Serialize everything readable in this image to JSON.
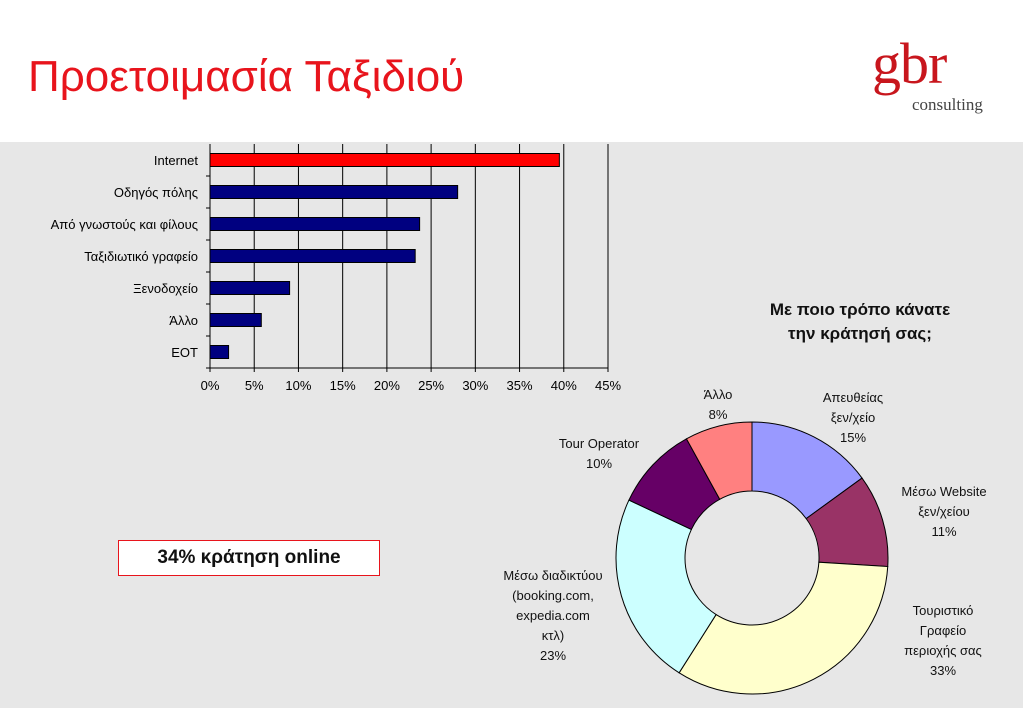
{
  "header": {
    "title": "Προετοιμασία Ταξιδιού",
    "logo_text": "gbr",
    "logo_subtext": "consulting"
  },
  "colors": {
    "title": "#e8141c",
    "background": "#e7e7e7",
    "bar_highlight": "#ff0000",
    "bar_default": "#000080",
    "pie": [
      "#9999ff",
      "#993366",
      "#ffffcc",
      "#ccffff",
      "#660066",
      "#ff8080"
    ]
  },
  "callout": "34% κράτηση online",
  "chart_data": [
    {
      "type": "bar",
      "orientation": "horizontal",
      "categories": [
        "Internet",
        "Οδηγός πόλης",
        "Από γνωστούς και φίλους",
        "Ταξιδιωτικό γραφείο",
        "Ξενοδοχείο",
        "Άλλο",
        "ΕΟΤ"
      ],
      "values": [
        39.5,
        28,
        23.7,
        23.2,
        9,
        5.8,
        2.1
      ],
      "xlim": [
        0,
        45
      ],
      "xticks": [
        "0%",
        "5%",
        "10%",
        "15%",
        "20%",
        "25%",
        "30%",
        "35%",
        "40%",
        "45%"
      ],
      "grid": "vertical",
      "highlight": "Internet"
    },
    {
      "type": "pie",
      "style": "donut",
      "title_lines": [
        "Με ποιο τρόπο κάνατε",
        "την κράτησή σας;"
      ],
      "slices": [
        {
          "label_lines": [
            "Απευθείας",
            "ξεν/χείο",
            "15%"
          ],
          "value": 15
        },
        {
          "label_lines": [
            "Μέσω Website",
            "ξεν/χείου",
            "11%"
          ],
          "value": 11
        },
        {
          "label_lines": [
            "Τουριστικό",
            "Γραφείο",
            "περιοχής σας",
            "33%"
          ],
          "value": 33
        },
        {
          "label_lines": [
            "Μέσω διαδικτύου",
            "(booking.com,",
            "expedia.com",
            "κτλ)",
            "23%"
          ],
          "value": 23
        },
        {
          "label_lines": [
            "Tour Operator",
            "10%"
          ],
          "value": 10
        },
        {
          "label_lines": [
            "Άλλο",
            "8%"
          ],
          "value": 8
        }
      ]
    }
  ]
}
